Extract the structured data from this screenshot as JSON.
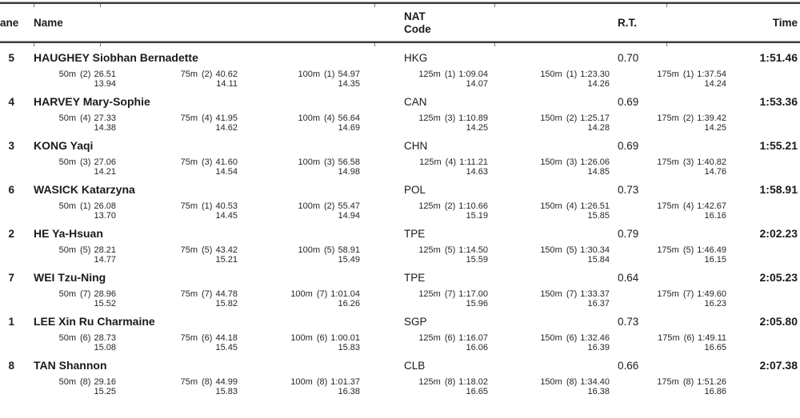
{
  "header": {
    "lane": "ane",
    "name": "Name",
    "nat_line1": "NAT",
    "nat_line2": "Code",
    "rt": "R.T.",
    "time": "Time"
  },
  "rows": [
    {
      "lane": "5",
      "name": "HAUGHEY Siobhan Bernadette",
      "nat": "HKG",
      "rt": "0.70",
      "time": "1:51.46",
      "splits": [
        {
          "dist": "50m",
          "rank": "(2)",
          "cum": "26.51",
          "lap": "13.94"
        },
        {
          "dist": "75m",
          "rank": "(2)",
          "cum": "40.62",
          "lap": "14.11"
        },
        {
          "dist": "100m",
          "rank": "(1)",
          "cum": "54.97",
          "lap": "14.35"
        },
        {
          "dist": "125m",
          "rank": "(1)",
          "cum": "1:09.04",
          "lap": "14.07"
        },
        {
          "dist": "150m",
          "rank": "(1)",
          "cum": "1:23.30",
          "lap": "14.26"
        },
        {
          "dist": "175m",
          "rank": "(1)",
          "cum": "1:37.54",
          "lap": "14.24"
        }
      ]
    },
    {
      "lane": "4",
      "name": "HARVEY Mary-Sophie",
      "nat": "CAN",
      "rt": "0.69",
      "time": "1:53.36",
      "splits": [
        {
          "dist": "50m",
          "rank": "(4)",
          "cum": "27.33",
          "lap": "14.38"
        },
        {
          "dist": "75m",
          "rank": "(4)",
          "cum": "41.95",
          "lap": "14.62"
        },
        {
          "dist": "100m",
          "rank": "(4)",
          "cum": "56.64",
          "lap": "14.69"
        },
        {
          "dist": "125m",
          "rank": "(3)",
          "cum": "1:10.89",
          "lap": "14.25"
        },
        {
          "dist": "150m",
          "rank": "(2)",
          "cum": "1:25.17",
          "lap": "14.28"
        },
        {
          "dist": "175m",
          "rank": "(2)",
          "cum": "1:39.42",
          "lap": "14.25"
        }
      ]
    },
    {
      "lane": "3",
      "name": "KONG Yaqi",
      "nat": "CHN",
      "rt": "0.69",
      "time": "1:55.21",
      "splits": [
        {
          "dist": "50m",
          "rank": "(3)",
          "cum": "27.06",
          "lap": "14.21"
        },
        {
          "dist": "75m",
          "rank": "(3)",
          "cum": "41.60",
          "lap": "14.54"
        },
        {
          "dist": "100m",
          "rank": "(3)",
          "cum": "56.58",
          "lap": "14.98"
        },
        {
          "dist": "125m",
          "rank": "(4)",
          "cum": "1:11.21",
          "lap": "14.63"
        },
        {
          "dist": "150m",
          "rank": "(3)",
          "cum": "1:26.06",
          "lap": "14.85"
        },
        {
          "dist": "175m",
          "rank": "(3)",
          "cum": "1:40.82",
          "lap": "14.76"
        }
      ]
    },
    {
      "lane": "6",
      "name": "WASICK Katarzyna",
      "nat": "POL",
      "rt": "0.73",
      "time": "1:58.91",
      "splits": [
        {
          "dist": "50m",
          "rank": "(1)",
          "cum": "26.08",
          "lap": "13.70"
        },
        {
          "dist": "75m",
          "rank": "(1)",
          "cum": "40.53",
          "lap": "14.45"
        },
        {
          "dist": "100m",
          "rank": "(2)",
          "cum": "55.47",
          "lap": "14.94"
        },
        {
          "dist": "125m",
          "rank": "(2)",
          "cum": "1:10.66",
          "lap": "15.19"
        },
        {
          "dist": "150m",
          "rank": "(4)",
          "cum": "1:26.51",
          "lap": "15.85"
        },
        {
          "dist": "175m",
          "rank": "(4)",
          "cum": "1:42.67",
          "lap": "16.16"
        }
      ]
    },
    {
      "lane": "2",
      "name": "HE Ya-Hsuan",
      "nat": "TPE",
      "rt": "0.79",
      "time": "2:02.23",
      "splits": [
        {
          "dist": "50m",
          "rank": "(5)",
          "cum": "28.21",
          "lap": "14.77"
        },
        {
          "dist": "75m",
          "rank": "(5)",
          "cum": "43.42",
          "lap": "15.21"
        },
        {
          "dist": "100m",
          "rank": "(5)",
          "cum": "58.91",
          "lap": "15.49"
        },
        {
          "dist": "125m",
          "rank": "(5)",
          "cum": "1:14.50",
          "lap": "15.59"
        },
        {
          "dist": "150m",
          "rank": "(5)",
          "cum": "1:30.34",
          "lap": "15.84"
        },
        {
          "dist": "175m",
          "rank": "(5)",
          "cum": "1:46.49",
          "lap": "16.15"
        }
      ]
    },
    {
      "lane": "7",
      "name": "WEI Tzu-Ning",
      "nat": "TPE",
      "rt": "0.64",
      "time": "2:05.23",
      "splits": [
        {
          "dist": "50m",
          "rank": "(7)",
          "cum": "28.96",
          "lap": "15.52"
        },
        {
          "dist": "75m",
          "rank": "(7)",
          "cum": "44.78",
          "lap": "15.82"
        },
        {
          "dist": "100m",
          "rank": "(7)",
          "cum": "1:01.04",
          "lap": "16.26"
        },
        {
          "dist": "125m",
          "rank": "(7)",
          "cum": "1:17.00",
          "lap": "15.96"
        },
        {
          "dist": "150m",
          "rank": "(7)",
          "cum": "1:33.37",
          "lap": "16.37"
        },
        {
          "dist": "175m",
          "rank": "(7)",
          "cum": "1:49.60",
          "lap": "16.23"
        }
      ]
    },
    {
      "lane": "1",
      "name": "LEE Xin Ru Charmaine",
      "nat": "SGP",
      "rt": "0.73",
      "time": "2:05.80",
      "splits": [
        {
          "dist": "50m",
          "rank": "(6)",
          "cum": "28.73",
          "lap": "15.08"
        },
        {
          "dist": "75m",
          "rank": "(6)",
          "cum": "44.18",
          "lap": "15.45"
        },
        {
          "dist": "100m",
          "rank": "(6)",
          "cum": "1:00.01",
          "lap": "15.83"
        },
        {
          "dist": "125m",
          "rank": "(6)",
          "cum": "1:16.07",
          "lap": "16.06"
        },
        {
          "dist": "150m",
          "rank": "(6)",
          "cum": "1:32.46",
          "lap": "16.39"
        },
        {
          "dist": "175m",
          "rank": "(6)",
          "cum": "1:49.11",
          "lap": "16.65"
        }
      ]
    },
    {
      "lane": "8",
      "name": "TAN Shannon",
      "nat": "CLB",
      "rt": "0.66",
      "time": "2:07.38",
      "splits": [
        {
          "dist": "50m",
          "rank": "(8)",
          "cum": "29.16",
          "lap": "15.25"
        },
        {
          "dist": "75m",
          "rank": "(8)",
          "cum": "44.99",
          "lap": "15.83"
        },
        {
          "dist": "100m",
          "rank": "(8)",
          "cum": "1:01.37",
          "lap": "16.38"
        },
        {
          "dist": "125m",
          "rank": "(8)",
          "cum": "1:18.02",
          "lap": "16.65"
        },
        {
          "dist": "150m",
          "rank": "(8)",
          "cum": "1:34.40",
          "lap": "16.38"
        },
        {
          "dist": "175m",
          "rank": "(8)",
          "cum": "1:51.26",
          "lap": "16.86"
        }
      ]
    }
  ]
}
